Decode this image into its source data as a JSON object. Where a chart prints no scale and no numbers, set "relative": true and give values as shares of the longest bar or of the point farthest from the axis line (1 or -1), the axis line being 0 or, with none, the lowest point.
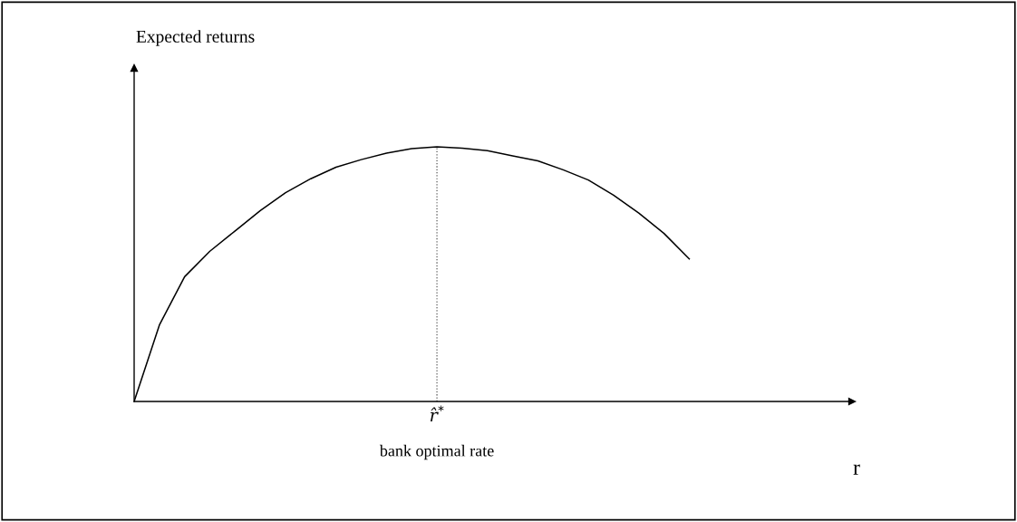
{
  "chart_data": {
    "type": "line",
    "relative": true,
    "xlabel": "r",
    "categories": [
      null,
      null,
      null,
      null,
      null,
      null,
      null,
      null,
      null,
      null,
      null,
      null,
      null,
      null,
      null,
      null,
      null,
      null,
      null,
      null,
      null,
      null,
      null,
      null,
      null,
      null,
      null,
      null,
      null
    ],
    "series": [
      {
        "color": "#000000",
        "values": [
          0,
          0.3,
          0.49,
          0.59,
          0.67,
          0.75,
          0.82,
          0.875,
          0.92,
          0.95,
          0.975,
          0.993,
          1.0,
          0.995,
          0.985,
          0.965,
          0.945,
          0.91,
          0.87,
          0.81,
          0.74,
          0.66,
          0.56,
          null,
          null,
          null,
          null,
          null,
          null
        ]
      }
    ],
    "annotations": [
      "Expected returns",
      "r̂$^{*}$",
      "bank optimal rate"
    ],
    "grid": false,
    "legend": false,
    "marker": "none",
    "line_style": "solid"
  }
}
